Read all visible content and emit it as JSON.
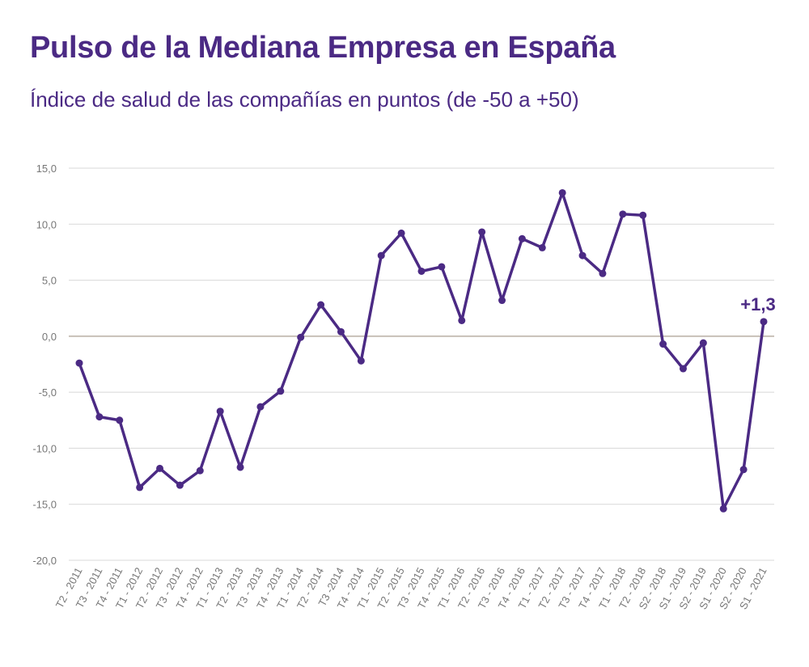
{
  "title": "Pulso de la Mediana Empresa en España",
  "subtitle": "Índice de salud de las compañías en puntos (de -50 a +50)",
  "colors": {
    "line": "#4b2a84",
    "grid": "#d8d8d8",
    "zero_line": "#c8c0b8",
    "tick_text": "#777777"
  },
  "chart_data": {
    "type": "line",
    "title": "Pulso de la Mediana Empresa en España",
    "subtitle": "Índice de salud de las compañías en puntos (de -50 a +50)",
    "xlabel": "",
    "ylabel": "",
    "ylim": [
      -20,
      15
    ],
    "yticks": [
      "15,0",
      "10,0",
      "5,0",
      "0,0",
      "-5,0",
      "-10,0",
      "-15,0",
      "-20,0"
    ],
    "ytick_values": [
      15,
      10,
      5,
      0,
      -5,
      -10,
      -15,
      -20
    ],
    "grid": true,
    "legend": "none",
    "categories": [
      "T2 - 2011",
      "T3 - 2011",
      "T4 - 2011",
      "T1 - 2012",
      "T2 - 2012",
      "T3 - 2012",
      "T4 - 2012",
      "T1 - 2013",
      "T2 - 2013",
      "T3 - 2013",
      "T4 - 2013",
      "T1 - 2014",
      "T2 - 2014",
      "T3 -2014",
      "T4 - 2014",
      "T1 - 2015",
      "T2 - 2015",
      "T3 - 2015",
      "T4 - 2015",
      "T1 - 2016",
      "T2 - 2016",
      "T3 - 2016",
      "T4 - 2016",
      "T1 - 2017",
      "T2 - 2017",
      "T3 - 2017",
      "T4 - 2017",
      "T1 - 2018",
      "T2 - 2018",
      "S2 - 2018",
      "S1 - 2019",
      "S2 - 2019",
      "S1 - 2020",
      "S2 - 2020",
      "S1 - 2021"
    ],
    "values": [
      -2.4,
      -7.2,
      -7.5,
      -13.5,
      -11.8,
      -13.3,
      -12.0,
      -6.7,
      -11.7,
      -6.3,
      -4.9,
      -0.1,
      2.8,
      0.4,
      -2.2,
      7.2,
      9.2,
      5.8,
      6.2,
      1.4,
      9.3,
      3.2,
      8.7,
      7.9,
      12.8,
      7.2,
      5.6,
      10.9,
      10.8,
      -0.7,
      -2.9,
      -0.6,
      -15.4,
      -11.9,
      1.3
    ],
    "annotations": [
      {
        "category": "S1 - 2021",
        "text": "+1,3"
      }
    ]
  }
}
